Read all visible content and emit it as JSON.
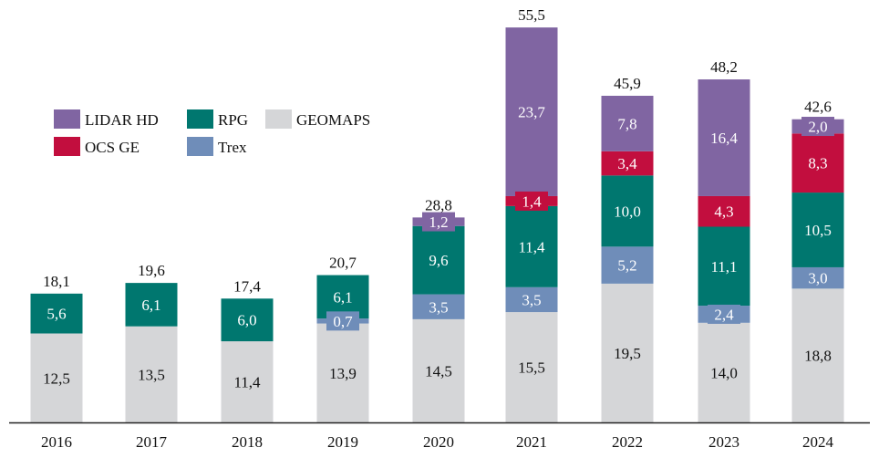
{
  "chart_data": {
    "type": "bar",
    "stacked": true,
    "title": "",
    "xlabel": "",
    "ylabel": "",
    "categories": [
      "2016",
      "2017",
      "2018",
      "2019",
      "2020",
      "2021",
      "2022",
      "2023",
      "2024"
    ],
    "series": [
      {
        "name": "GEOMAPS",
        "color": "#d5d6d8",
        "label_color": "#111111",
        "values": [
          12.5,
          13.5,
          11.4,
          13.9,
          14.5,
          15.5,
          19.5,
          14.0,
          18.8
        ],
        "labels": [
          "12,5",
          "13,5",
          "11,4",
          "13,9",
          "14,5",
          "15,5",
          "19,5",
          "14,0",
          "18,8"
        ]
      },
      {
        "name": "Trex",
        "color": "#6f8db9",
        "label_color": "#ffffff",
        "values": [
          0,
          0,
          0,
          0.7,
          3.5,
          3.5,
          5.2,
          2.4,
          3.0
        ],
        "labels": [
          "",
          "",
          "",
          "0,7",
          "3,5",
          "3,5",
          "5,2",
          "2,4",
          "3,0"
        ]
      },
      {
        "name": "RPG",
        "color": "#00776f",
        "label_color": "#ffffff",
        "values": [
          5.6,
          6.1,
          6.0,
          6.1,
          9.6,
          11.4,
          10.0,
          11.1,
          10.5
        ],
        "labels": [
          "5,6",
          "6,1",
          "6,0",
          "6,1",
          "9,6",
          "11,4",
          "10,0",
          "11,1",
          "10,5"
        ]
      },
      {
        "name": "OCS GE",
        "color": "#c20e3e",
        "label_color": "#ffffff",
        "values": [
          0,
          0,
          0,
          0,
          0,
          1.4,
          3.4,
          4.3,
          8.3
        ],
        "labels": [
          "",
          "",
          "",
          "",
          "",
          "1,4",
          "3,4",
          "4,3",
          "8,3"
        ]
      },
      {
        "name": "LIDAR HD",
        "color": "#8065a2",
        "label_color": "#ffffff",
        "values": [
          0,
          0,
          0,
          0,
          1.2,
          23.7,
          7.8,
          16.4,
          2.0
        ],
        "labels": [
          "",
          "",
          "",
          "",
          "1,2",
          "23,7",
          "7,8",
          "16,4",
          "2,0"
        ]
      }
    ],
    "totals": [
      18.1,
      19.6,
      17.4,
      20.7,
      28.8,
      55.5,
      45.9,
      48.2,
      42.6
    ],
    "total_labels": [
      "18,1",
      "19,6",
      "17,4",
      "20,7",
      "28,8",
      "55,5",
      "45,9",
      "48,2",
      "42,6"
    ],
    "ylim": [
      0,
      58
    ],
    "grid": false,
    "y_axis_visible": false,
    "legend": {
      "placement": "top-left",
      "rows": [
        [
          "LIDAR HD",
          "RPG",
          "GEOMAPS"
        ],
        [
          "OCS GE",
          "Trex"
        ]
      ]
    }
  }
}
